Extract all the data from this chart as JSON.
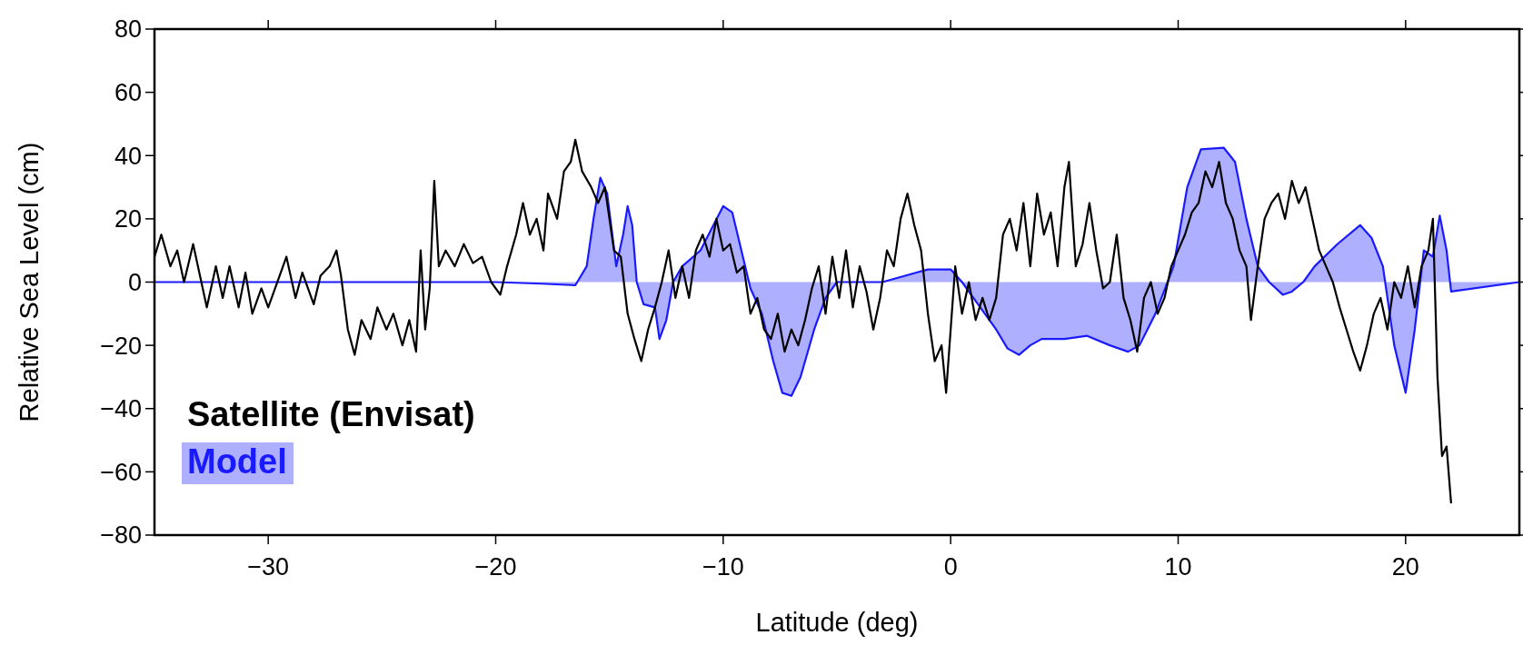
{
  "chart_data": {
    "type": "line",
    "xlabel": "Latitude (deg)",
    "ylabel": "Relative Sea Level (cm)",
    "xlim": [
      -35,
      25
    ],
    "xticks": [
      -30,
      -20,
      -10,
      0,
      10,
      20
    ],
    "ylim": [
      -80,
      80
    ],
    "yticks": [
      -80,
      -60,
      -40,
      -20,
      0,
      20,
      40,
      60,
      80
    ],
    "grid": false,
    "legend": "bottom left",
    "line_style": "solid",
    "marker": "none",
    "series": [
      {
        "name": "Satellite (Envisat)",
        "color": "#000000",
        "x": [
          -35,
          -34.7,
          -34.3,
          -34,
          -33.7,
          -33.3,
          -33,
          -32.7,
          -32.3,
          -32,
          -31.7,
          -31.3,
          -31,
          -30.7,
          -30.3,
          -30,
          -29.5,
          -29.2,
          -28.8,
          -28.5,
          -28,
          -27.7,
          -27.3,
          -27,
          -26.8,
          -26.5,
          -26.2,
          -25.9,
          -25.5,
          -25.2,
          -24.8,
          -24.5,
          -24.1,
          -23.8,
          -23.5,
          -23.3,
          -23.1,
          -22.9,
          -22.7,
          -22.5,
          -22.2,
          -21.8,
          -21.4,
          -21,
          -20.6,
          -20.2,
          -19.8,
          -19.5,
          -19.1,
          -18.8,
          -18.5,
          -18.2,
          -17.9,
          -17.7,
          -17.3,
          -17,
          -16.7,
          -16.5,
          -16.2,
          -15.8,
          -15.5,
          -15.2,
          -15,
          -14.8,
          -14.5,
          -14.2,
          -13.9,
          -13.6,
          -13.3,
          -13,
          -12.7,
          -12.4,
          -12.1,
          -11.8,
          -11.5,
          -11.2,
          -10.9,
          -10.6,
          -10.3,
          -10,
          -9.7,
          -9.4,
          -9.1,
          -8.8,
          -8.5,
          -8.2,
          -7.9,
          -7.6,
          -7.3,
          -7,
          -6.7,
          -6.4,
          -6.1,
          -5.8,
          -5.5,
          -5.2,
          -4.9,
          -4.6,
          -4.3,
          -4,
          -3.7,
          -3.4,
          -3.1,
          -2.8,
          -2.5,
          -2.2,
          -1.9,
          -1.6,
          -1.3,
          -1,
          -0.7,
          -0.4,
          -0.2,
          0,
          0.2,
          0.5,
          0.8,
          1.1,
          1.4,
          1.7,
          2,
          2.3,
          2.6,
          2.9,
          3.2,
          3.5,
          3.8,
          4.1,
          4.4,
          4.7,
          5,
          5.2,
          5.5,
          5.8,
          6.1,
          6.4,
          6.7,
          7,
          7.3,
          7.6,
          7.9,
          8.2,
          8.5,
          8.8,
          9.1,
          9.4,
          9.7,
          10,
          10.3,
          10.6,
          10.9,
          11.2,
          11.5,
          11.8,
          12.1,
          12.4,
          12.7,
          13,
          13.2,
          13.5,
          13.8,
          14.1,
          14.4,
          14.7,
          15,
          15.3,
          15.6,
          15.9,
          16.2,
          16.5,
          16.8,
          17.1,
          17.4,
          17.7,
          18,
          18.3,
          18.6,
          18.9,
          19.2,
          19.5,
          19.8,
          20.1,
          20.4,
          20.7,
          21,
          21.2,
          21.4,
          21.6,
          21.8,
          22
        ],
        "values": [
          8,
          15,
          5,
          10,
          0,
          12,
          2,
          -8,
          5,
          -5,
          5,
          -8,
          3,
          -10,
          -2,
          -8,
          2,
          8,
          -5,
          3,
          -7,
          2,
          5,
          10,
          2,
          -15,
          -23,
          -12,
          -18,
          -8,
          -15,
          -10,
          -20,
          -12,
          -22,
          10,
          -15,
          -2,
          32,
          5,
          10,
          5,
          12,
          6,
          8,
          0,
          -4,
          5,
          15,
          25,
          15,
          20,
          10,
          28,
          20,
          35,
          38,
          45,
          35,
          30,
          25,
          30,
          20,
          10,
          8,
          -10,
          -18,
          -25,
          -15,
          -8,
          0,
          10,
          -5,
          5,
          -5,
          10,
          15,
          8,
          20,
          10,
          12,
          3,
          5,
          -10,
          -5,
          -15,
          -18,
          -10,
          -22,
          -15,
          -20,
          -12,
          -2,
          5,
          -10,
          8,
          -5,
          10,
          -8,
          5,
          -3,
          -15,
          -5,
          10,
          5,
          20,
          28,
          18,
          10,
          -10,
          -25,
          -20,
          -35,
          -15,
          5,
          -10,
          0,
          -12,
          -5,
          -12,
          -5,
          15,
          20,
          10,
          25,
          5,
          28,
          15,
          22,
          5,
          30,
          38,
          5,
          12,
          25,
          10,
          -2,
          0,
          15,
          -5,
          -12,
          -22,
          -5,
          0,
          -10,
          -5,
          5,
          10,
          15,
          22,
          25,
          35,
          30,
          38,
          25,
          20,
          10,
          5,
          -12,
          5,
          20,
          25,
          28,
          20,
          32,
          25,
          30,
          20,
          10,
          5,
          0,
          -8,
          -15,
          -22,
          -28,
          -20,
          -10,
          -5,
          -15,
          0,
          -5,
          5,
          -8,
          5,
          10,
          20,
          -30,
          -55,
          -52,
          -70
        ]
      },
      {
        "name": "Model",
        "type": "area",
        "color": "#1a1aff",
        "x": [
          -35,
          -20,
          -18,
          -16.5,
          -16,
          -15.7,
          -15.4,
          -15.1,
          -14.7,
          -14.4,
          -14.2,
          -14,
          -13.8,
          -13.5,
          -13,
          -12.8,
          -12.5,
          -12.2,
          -11.8,
          -11,
          -10.5,
          -10,
          -9.6,
          -9.2,
          -8.8,
          -8.3,
          -7.8,
          -7.4,
          -7,
          -6.6,
          -6,
          -5.5,
          -5,
          -3,
          -2,
          -1,
          0,
          0.5,
          1,
          2,
          2.5,
          3,
          3.5,
          4,
          5,
          6,
          7,
          7.8,
          8.3,
          9,
          9.8,
          10.4,
          11,
          12,
          12.5,
          13,
          13.5,
          14,
          14.6,
          15,
          15.5,
          16,
          17,
          18,
          18.5,
          19,
          19.5,
          20,
          20.4,
          20.8,
          21.2,
          21.5,
          21.8,
          22,
          25
        ],
        "values": [
          0,
          0,
          -0.5,
          -1,
          5,
          20,
          33,
          28,
          5,
          15,
          24,
          18,
          0,
          -7,
          -8,
          -18,
          -12,
          0,
          5,
          10,
          17,
          24,
          22,
          10,
          -2,
          -10,
          -25,
          -35,
          -36,
          -30,
          -15,
          -5,
          0,
          0,
          2,
          4,
          4,
          0,
          -5,
          -15,
          -21,
          -23,
          -20,
          -18,
          -18,
          -17,
          -20,
          -22,
          -20,
          -10,
          5,
          30,
          42,
          42.5,
          38,
          20,
          5,
          0,
          -4,
          -3,
          0,
          5,
          12,
          18,
          14,
          5,
          -20,
          -35,
          -15,
          10,
          8,
          21,
          10,
          -3,
          0
        ]
      }
    ]
  }
}
